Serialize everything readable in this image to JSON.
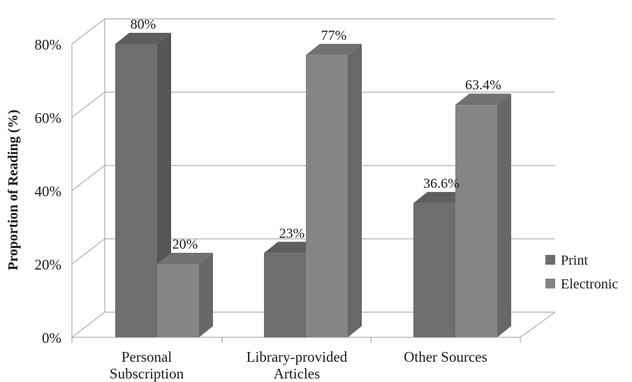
{
  "chart_data": {
    "type": "bar",
    "ylabel": "Proportion of Reading (%)",
    "xlabel": "",
    "title": "",
    "ylim": [
      0,
      80
    ],
    "yticks": [
      "0%",
      "20%",
      "40%",
      "60%",
      "80%"
    ],
    "categories": [
      [
        "Personal",
        "Subscription"
      ],
      [
        "Library-provided",
        "Articles"
      ],
      [
        "Other Sources"
      ]
    ],
    "series": [
      {
        "name": "Print",
        "values": [
          80,
          23,
          36.6
        ],
        "labels": [
          "80%",
          "23%",
          "36.6%"
        ],
        "color": "#6e6e6e"
      },
      {
        "name": "Electronic",
        "values": [
          20,
          77,
          63.4
        ],
        "labels": [
          "20%",
          "77%",
          "63.4%"
        ],
        "color": "#858585"
      }
    ],
    "grid": true,
    "legend": "right",
    "style": "3d-column"
  }
}
